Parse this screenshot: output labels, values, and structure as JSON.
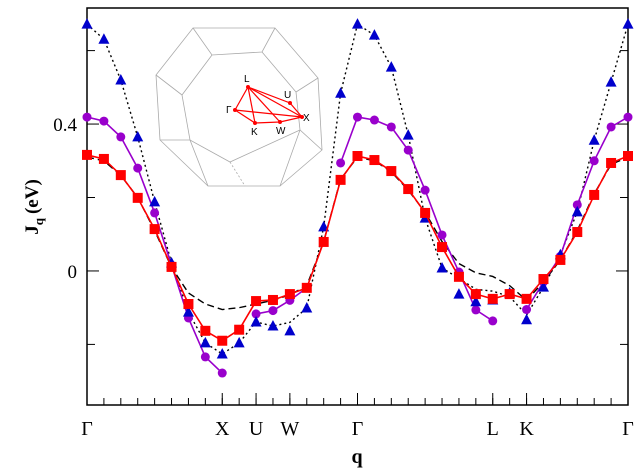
{
  "chart_data": {
    "type": "line",
    "xlabel": "q",
    "ylabel": {
      "main": "J",
      "sub": "q",
      "unit": "(eV)"
    },
    "xlim": [
      0,
      32
    ],
    "xticks": [
      {
        "value": 0,
        "label": "Γ"
      },
      {
        "value": 8,
        "label": "X"
      },
      {
        "value": 10,
        "label": "U"
      },
      {
        "value": 12,
        "label": "W"
      },
      {
        "value": 16,
        "label": "Γ"
      },
      {
        "value": 24,
        "label": "L"
      },
      {
        "value": 26,
        "label": "K"
      },
      {
        "value": 32,
        "label": "Γ"
      }
    ],
    "xminorticks": [
      0,
      1,
      2,
      3,
      4,
      5,
      6,
      7,
      8,
      9,
      10,
      11,
      12,
      13,
      14,
      15,
      16,
      17,
      18,
      19,
      20,
      21,
      22,
      23,
      24,
      25,
      26,
      27,
      28,
      29,
      30,
      31,
      32
    ],
    "ylim": [
      -0.365,
      0.716
    ],
    "yticks": [
      0,
      0.4
    ],
    "yminorticks": [
      -0.2,
      0.2,
      0.6
    ],
    "x": [
      0,
      1,
      2,
      3,
      4,
      5,
      6,
      7,
      8,
      9,
      10,
      11,
      12,
      13,
      14,
      15,
      16,
      17,
      18,
      19,
      20,
      21,
      22,
      23,
      24,
      25,
      26,
      27,
      28,
      29,
      30,
      31,
      32
    ],
    "series": [
      {
        "color": "#000000",
        "style": "dashed",
        "marker": "none",
        "values": [
          0.31,
          0.3,
          0.26,
          0.2,
          0.11,
          0.01,
          -0.06,
          -0.09,
          -0.105,
          -0.1,
          -0.09,
          -0.08,
          -0.065,
          -0.04,
          0.08,
          0.25,
          0.31,
          0.3,
          0.27,
          0.22,
          0.16,
          0.08,
          0.02,
          -0.005,
          -0.015,
          -0.04,
          -0.08,
          -0.03,
          0.03,
          0.11,
          0.21,
          0.29,
          0.31
        ]
      },
      {
        "color": "#000000",
        "style": "dotted",
        "marker": "none",
        "values": [
          0.672,
          0.631,
          0.52,
          0.365,
          0.188,
          0.022,
          -0.112,
          -0.196,
          -0.226,
          -0.196,
          -0.139,
          -0.15,
          -0.14,
          -0.101,
          0.12,
          0.484,
          0.672,
          0.642,
          0.555,
          0.37,
          0.144,
          0.008,
          -0.02,
          -0.05,
          -0.055,
          -0.07,
          -0.12,
          -0.044,
          0.044,
          0.161,
          0.356,
          0.514,
          0.672
        ]
      },
      {
        "color": "#9900cc",
        "style": "solid",
        "marker": "circle",
        "values": [
          0.419,
          0.408,
          0.365,
          0.28,
          0.158,
          0.016,
          -0.128,
          -0.234,
          -0.278,
          null,
          -0.117,
          -0.108,
          -0.08,
          -0.046,
          null,
          0.294,
          0.419,
          0.411,
          0.392,
          0.329,
          0.22,
          0.098,
          -0.003,
          -0.106,
          -0.136,
          null,
          -0.105,
          -0.03,
          0.04,
          0.18,
          0.3,
          0.392,
          0.419
        ]
      },
      {
        "color": "#0000cc",
        "style": "none",
        "marker": "triangle",
        "values": [
          0.672,
          0.631,
          0.52,
          0.365,
          0.188,
          0.022,
          -0.112,
          -0.196,
          -0.226,
          -0.196,
          -0.139,
          -0.15,
          -0.163,
          -0.101,
          0.12,
          0.484,
          0.672,
          0.642,
          0.555,
          0.37,
          0.144,
          0.008,
          -0.063,
          -0.084,
          -0.079,
          -0.06,
          -0.133,
          -0.044,
          0.044,
          0.161,
          0.356,
          0.514,
          0.672
        ]
      },
      {
        "color": "#ff0000",
        "style": "solid",
        "marker": "square",
        "values": [
          0.316,
          0.305,
          0.261,
          0.199,
          0.114,
          0.011,
          -0.09,
          -0.163,
          -0.19,
          -0.16,
          -0.082,
          -0.079,
          -0.063,
          -0.046,
          0.079,
          0.248,
          0.313,
          0.302,
          0.272,
          0.223,
          0.158,
          0.065,
          -0.016,
          -0.063,
          -0.076,
          -0.063,
          -0.076,
          -0.022,
          0.03,
          0.106,
          0.207,
          0.294,
          0.313
        ]
      }
    ],
    "inset": {
      "labels": [
        "L",
        "U",
        "Γ",
        "K",
        "W",
        "X"
      ]
    }
  }
}
